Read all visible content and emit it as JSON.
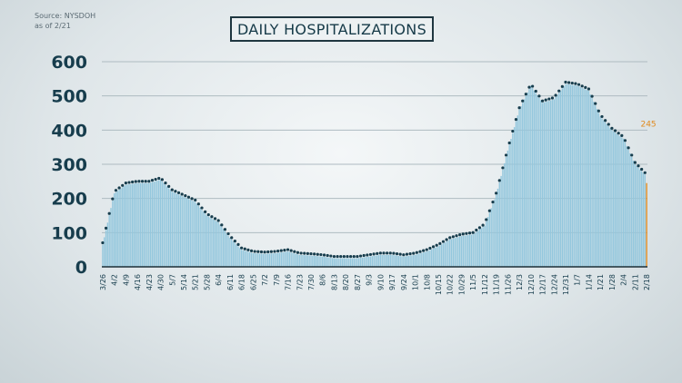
{
  "source": {
    "line1": "Source: NYSDOH",
    "line2": "as of 2/21"
  },
  "colors": {
    "bar": "#93c7dd",
    "bar_last": "#e08a1e",
    "dots": "#173d4d",
    "grid": "#aebbc1",
    "axis": "#1c2f37",
    "text": "#173d4d"
  },
  "chart_data": {
    "type": "bar",
    "title": "DAILY HOSPITALIZATIONS",
    "xlabel": "",
    "ylabel": "",
    "ylim": [
      0,
      600
    ],
    "yticks": [
      0,
      100,
      200,
      300,
      400,
      500,
      600
    ],
    "grid": true,
    "x_tick_labels": [
      "3/26",
      "4/2",
      "4/9",
      "4/16",
      "4/23",
      "4/30",
      "5/7",
      "5/14",
      "5/21",
      "5/28",
      "6/4",
      "6/11",
      "6/18",
      "6/25",
      "7/2",
      "7/9",
      "7/16",
      "7/23",
      "7/30",
      "8/6",
      "8/13",
      "8/20",
      "8/27",
      "9/3",
      "9/10",
      "9/17",
      "9/24",
      "10/1",
      "10/8",
      "10/15",
      "10/22",
      "10/29",
      "11/5",
      "11/12",
      "11/19",
      "11/26",
      "12/3",
      "12/10",
      "12/17",
      "12/24",
      "12/31",
      "1/7",
      "1/14",
      "1/21",
      "1/28",
      "2/4",
      "2/11",
      "2/18"
    ],
    "anchor_values": [
      65,
      215,
      240,
      245,
      245,
      255,
      220,
      205,
      190,
      150,
      130,
      85,
      50,
      40,
      38,
      40,
      45,
      35,
      33,
      30,
      25,
      25,
      25,
      30,
      35,
      35,
      30,
      35,
      45,
      60,
      80,
      90,
      95,
      120,
      210,
      340,
      460,
      530,
      480,
      490,
      535,
      530,
      515,
      440,
      400,
      375,
      300,
      265
    ],
    "last_label": "245",
    "last_value": 245,
    "rolling_average_dots": true
  }
}
